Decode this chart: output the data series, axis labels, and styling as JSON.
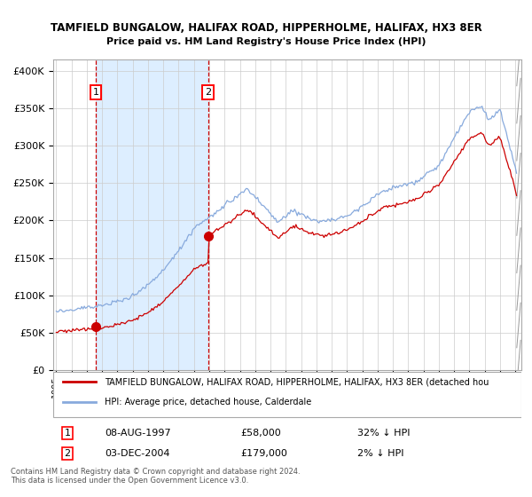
{
  "title1": "TAMFIELD BUNGALOW, HALIFAX ROAD, HIPPERHOLME, HALIFAX, HX3 8ER",
  "title2": "Price paid vs. HM Land Registry's House Price Index (HPI)",
  "legend_line1": "TAMFIELD BUNGALOW, HALIFAX ROAD, HIPPERHOLME, HALIFAX, HX3 8ER (detached hou",
  "legend_line2": "HPI: Average price, detached house, Calderdale",
  "annotation_text": "Contains HM Land Registry data © Crown copyright and database right 2024.\nThis data is licensed under the Open Government Licence v3.0.",
  "purchase1_date": "08-AUG-1997",
  "purchase1_price": 58000,
  "purchase1_hpi_text": "32% ↓ HPI",
  "purchase2_date": "03-DEC-2004",
  "purchase2_price": 179000,
  "purchase2_hpi_text": "2% ↓ HPI",
  "yticks": [
    0,
    50000,
    100000,
    150000,
    200000,
    250000,
    300000,
    350000,
    400000
  ],
  "ylim": [
    0,
    415000
  ],
  "xlim_left": 1994.8,
  "xlim_right": 2025.4,
  "background_color": "#ffffff",
  "highlight_fill": "#ddeeff",
  "grid_color": "#cccccc",
  "red_line_color": "#cc0000",
  "blue_line_color": "#88aadd",
  "vline1_color": "#cc0000",
  "vline2_color": "#cc0000",
  "purchase1_x": 1997.58,
  "purchase2_x": 2004.92,
  "seed": 12
}
